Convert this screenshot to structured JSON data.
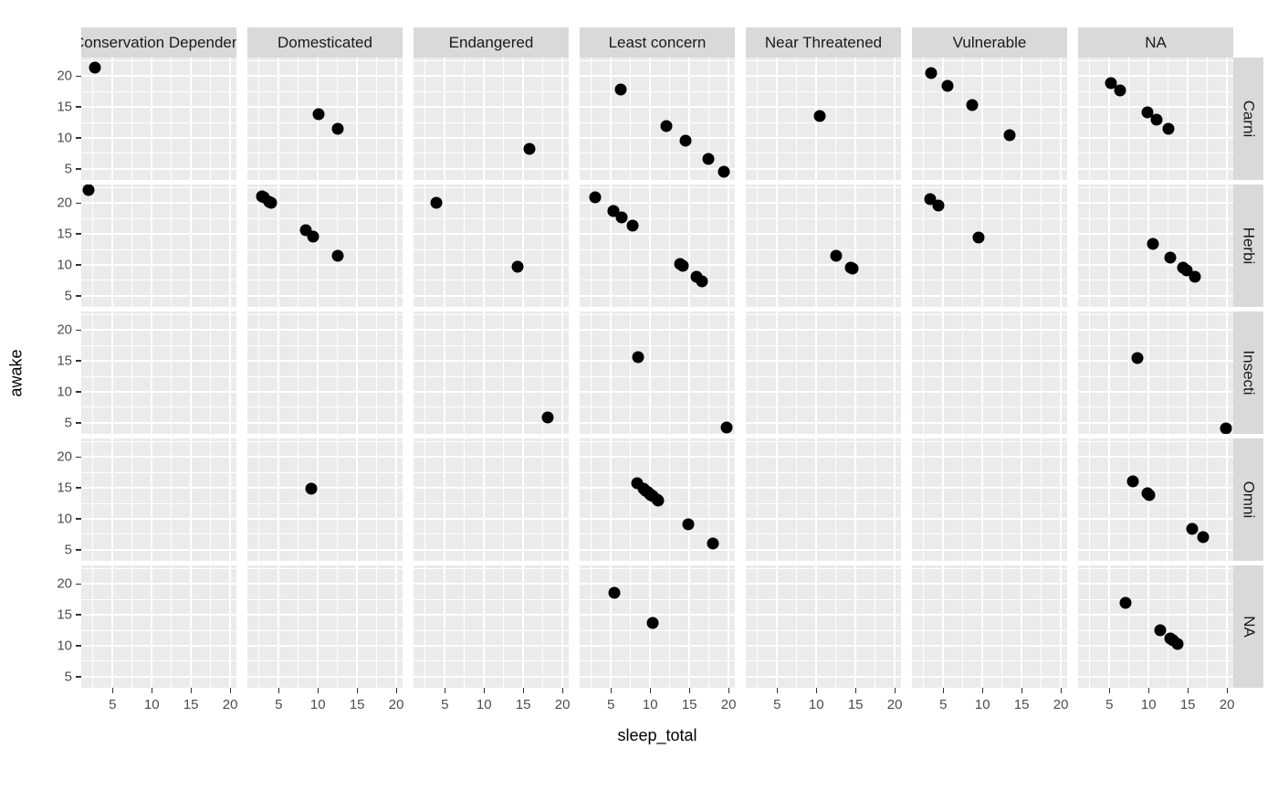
{
  "chart_data": {
    "type": "scatter",
    "title": "",
    "xlabel": "sleep_total",
    "ylabel": "awake",
    "x_ticks": [
      5,
      10,
      15,
      20
    ],
    "y_ticks": [
      20,
      15,
      10,
      5
    ],
    "x_minor_ticks": [
      2.5,
      7.5,
      12.5,
      17.5
    ],
    "y_minor_ticks": [
      7.5,
      12.5,
      17.5,
      22.5
    ],
    "x_domain": [
      1.0,
      20.8
    ],
    "y_domain": [
      3.2,
      23.0
    ],
    "grid": true,
    "legend": "none",
    "point_color": "#000000",
    "col_facets": [
      "Conservation Dependent",
      "Domesticated",
      "Endangered",
      "Least concern",
      "Near Threatened",
      "Vulnerable",
      "NA"
    ],
    "row_facets": [
      "Carni",
      "Herbi",
      "Insecti",
      "Omni",
      "NA"
    ],
    "panels": [
      {
        "row": 0,
        "col": 0,
        "points": [
          [
            2.7,
            21.35
          ]
        ]
      },
      {
        "row": 0,
        "col": 1,
        "points": [
          [
            10.1,
            13.9
          ],
          [
            12.5,
            11.5
          ]
        ]
      },
      {
        "row": 0,
        "col": 2,
        "points": [
          [
            15.8,
            8.2
          ]
        ]
      },
      {
        "row": 0,
        "col": 3,
        "points": [
          [
            6.2,
            17.8
          ],
          [
            12.1,
            11.9
          ],
          [
            14.5,
            9.5
          ],
          [
            17.4,
            6.6
          ],
          [
            19.4,
            4.6
          ]
        ]
      },
      {
        "row": 0,
        "col": 4,
        "points": [
          [
            10.4,
            13.6
          ]
        ]
      },
      {
        "row": 0,
        "col": 5,
        "points": [
          [
            3.5,
            20.5
          ],
          [
            5.6,
            18.4
          ],
          [
            8.7,
            15.3
          ],
          [
            13.5,
            10.5
          ]
        ]
      },
      {
        "row": 0,
        "col": 6,
        "points": [
          [
            5.2,
            18.8
          ],
          [
            6.3,
            17.7
          ],
          [
            9.8,
            14.2
          ],
          [
            11.0,
            13.0
          ],
          [
            12.5,
            11.5
          ]
        ]
      },
      {
        "row": 1,
        "col": 0,
        "points": [
          [
            1.9,
            22.1
          ]
        ]
      },
      {
        "row": 1,
        "col": 1,
        "points": [
          [
            2.9,
            21.1
          ],
          [
            3.1,
            20.9
          ],
          [
            3.8,
            20.2
          ],
          [
            4.0,
            20.0
          ],
          [
            8.4,
            15.6
          ],
          [
            9.4,
            14.6
          ],
          [
            12.5,
            11.5
          ]
        ]
      },
      {
        "row": 1,
        "col": 2,
        "points": [
          [
            3.9,
            20.1
          ],
          [
            14.3,
            9.7
          ]
        ]
      },
      {
        "row": 1,
        "col": 3,
        "points": [
          [
            3.0,
            21.0
          ],
          [
            5.3,
            18.7
          ],
          [
            5.3,
            18.7
          ],
          [
            6.3,
            17.7
          ],
          [
            7.7,
            16.3
          ],
          [
            13.8,
            10.2
          ],
          [
            14.2,
            9.8
          ],
          [
            15.9,
            8.1
          ],
          [
            16.6,
            7.4
          ]
        ]
      },
      {
        "row": 1,
        "col": 4,
        "points": [
          [
            12.5,
            11.5
          ],
          [
            14.4,
            9.6
          ],
          [
            14.6,
            9.4
          ]
        ]
      },
      {
        "row": 1,
        "col": 5,
        "points": [
          [
            3.3,
            20.7
          ],
          [
            4.4,
            19.6
          ],
          [
            9.5,
            14.5
          ]
        ]
      },
      {
        "row": 1,
        "col": 6,
        "points": [
          [
            10.6,
            13.4
          ],
          [
            12.8,
            11.2
          ],
          [
            14.4,
            9.6
          ],
          [
            14.9,
            9.1
          ],
          [
            15.9,
            8.1
          ]
        ]
      },
      {
        "row": 2,
        "col": 2,
        "points": [
          [
            18.1,
            5.9
          ]
        ]
      },
      {
        "row": 2,
        "col": 3,
        "points": [
          [
            8.4,
            15.6
          ],
          [
            19.7,
            4.3
          ]
        ]
      },
      {
        "row": 2,
        "col": 6,
        "points": [
          [
            8.6,
            15.4
          ],
          [
            19.9,
            4.1
          ]
        ]
      },
      {
        "row": 3,
        "col": 1,
        "points": [
          [
            9.1,
            14.9
          ]
        ]
      },
      {
        "row": 3,
        "col": 3,
        "points": [
          [
            8.3,
            15.7
          ],
          [
            9.1,
            14.9
          ],
          [
            9.4,
            14.6
          ],
          [
            9.7,
            14.3
          ],
          [
            10.0,
            14.0
          ],
          [
            10.1,
            13.9
          ],
          [
            10.3,
            13.7
          ],
          [
            10.9,
            13.1
          ],
          [
            11.0,
            13.0
          ],
          [
            14.9,
            9.1
          ],
          [
            18.0,
            6.0
          ]
        ]
      },
      {
        "row": 3,
        "col": 6,
        "points": [
          [
            8.0,
            16.0
          ],
          [
            9.8,
            14.2
          ],
          [
            10.1,
            13.9
          ],
          [
            15.6,
            8.4
          ],
          [
            17.0,
            7.0
          ]
        ]
      },
      {
        "row": 4,
        "col": 3,
        "points": [
          [
            5.4,
            18.6
          ],
          [
            10.3,
            13.7
          ]
        ]
      },
      {
        "row": 4,
        "col": 6,
        "points": [
          [
            7.0,
            17.0
          ],
          [
            11.5,
            12.5
          ],
          [
            12.8,
            11.2
          ],
          [
            13.1,
            10.9
          ],
          [
            13.7,
            10.3
          ]
        ]
      }
    ]
  },
  "colors": {
    "panel_background": "#ebebeb",
    "strip_background": "#d9d9d9",
    "gridline": "#ffffff",
    "point": "#000000",
    "axis_text": "#4d4d4d",
    "axis_title": "#000000"
  }
}
